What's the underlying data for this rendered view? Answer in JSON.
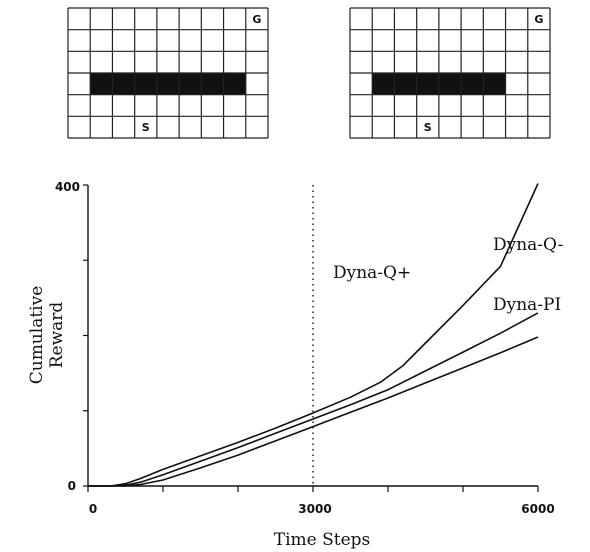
{
  "mazes": [
    {
      "cols": 9,
      "rows": 6,
      "goal": {
        "col": 8,
        "row": 0,
        "label": "G"
      },
      "start": {
        "col": 3,
        "row": 5,
        "label": "S"
      },
      "wall": {
        "row": 3,
        "col_start": 1,
        "col_end": 8
      }
    },
    {
      "cols": 9,
      "rows": 6,
      "goal": {
        "col": 8,
        "row": 0,
        "label": "G"
      },
      "start": {
        "col": 3,
        "row": 5,
        "label": "S"
      },
      "wall": {
        "row": 3,
        "col_start": 1,
        "col_end": 7
      }
    }
  ],
  "chart_data": {
    "type": "line",
    "xlabel": "Time Steps",
    "ylabel_lines": [
      "Cumulative",
      "Reward"
    ],
    "xlim": [
      0,
      6000
    ],
    "ylim": [
      0,
      400
    ],
    "x_ticks": [
      0,
      3000,
      6000
    ],
    "y_ticks": [
      0,
      400
    ],
    "vline": {
      "x": 3000,
      "style": "dotted"
    },
    "series": [
      {
        "name": "Dyna-Q+",
        "x": [
          0,
          300,
          500,
          700,
          1000,
          1500,
          2000,
          2500,
          3000,
          3500,
          3900,
          4200,
          4500,
          5000,
          5500,
          6000
        ],
        "y": [
          0,
          0,
          3,
          10,
          22,
          40,
          58,
          77,
          97,
          118,
          138,
          160,
          190,
          240,
          292,
          402
        ]
      },
      {
        "name": "Dyna-Q-",
        "x": [
          0,
          300,
          500,
          700,
          1000,
          1500,
          2000,
          2500,
          3000,
          3500,
          4000,
          4500,
          5000,
          5500,
          6000
        ],
        "y": [
          0,
          0,
          1,
          5,
          15,
          33,
          51,
          70,
          89,
          108,
          128,
          153,
          178,
          203,
          230
        ]
      },
      {
        "name": "Dyna-PI",
        "x": [
          0,
          300,
          500,
          700,
          1000,
          1500,
          2000,
          2500,
          3000,
          3500,
          4000,
          4500,
          5000,
          5500,
          6000
        ],
        "y": [
          0,
          0,
          0,
          2,
          8,
          24,
          41,
          60,
          79,
          98,
          117,
          137,
          157,
          177,
          198
        ]
      }
    ]
  }
}
